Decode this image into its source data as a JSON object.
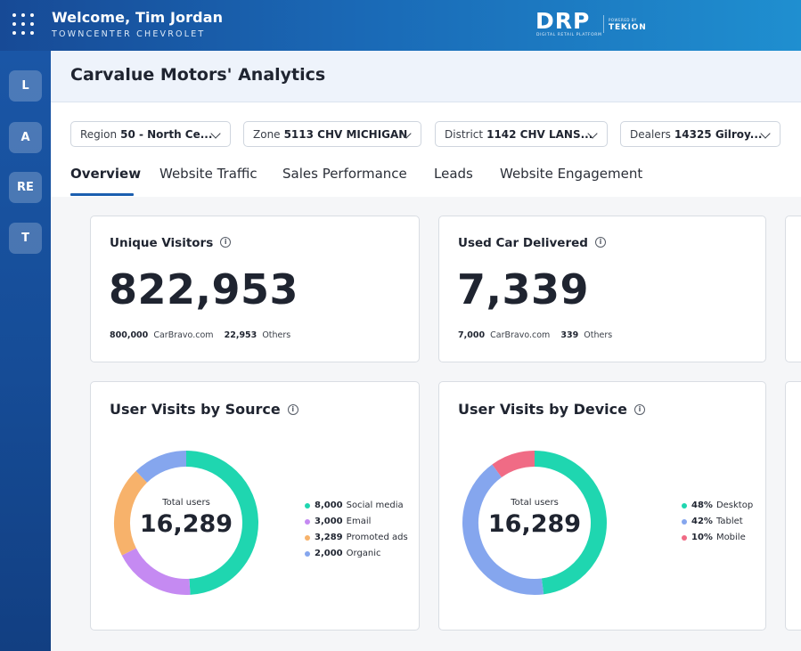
{
  "header": {
    "welcome": "Welcome, Tim Jordan",
    "dealer": "TOWNCENTER CHEVROLET",
    "logo_text": "DRP",
    "logo_sub": "DIGITAL RETAIL PLATFORM",
    "powered_by": "POWERED BY",
    "partner": "TEKION"
  },
  "sidebar": {
    "items": [
      {
        "label": "L"
      },
      {
        "label": "A"
      },
      {
        "label": "RE"
      },
      {
        "label": "T"
      }
    ]
  },
  "page": {
    "title": "Carvalue Motors' Analytics"
  },
  "filters": [
    {
      "label": "Region",
      "value": "50 - North Ce..."
    },
    {
      "label": "Zone",
      "value": "5113 CHV MICHIGAN"
    },
    {
      "label": "District",
      "value": "1142 CHV LANS..."
    },
    {
      "label": "Dealers",
      "value": "14325 Gilroy..."
    }
  ],
  "tabs": [
    {
      "label": "Overview",
      "active": true
    },
    {
      "label": "Website Traffic",
      "active": false
    },
    {
      "label": "Sales Performance",
      "active": false
    },
    {
      "label": "Leads",
      "active": false
    },
    {
      "label": "Website Engagement",
      "active": false
    }
  ],
  "kpis": [
    {
      "title": "Unique Visitors",
      "value": "822,953",
      "breakdown": [
        {
          "amount": "800,000",
          "label": "CarBravo.com"
        },
        {
          "amount": "22,953",
          "label": "Others"
        }
      ]
    },
    {
      "title": "Used Car Delivered",
      "value": "7,339",
      "breakdown": [
        {
          "amount": "7,000",
          "label": "CarBravo.com"
        },
        {
          "amount": "339",
          "label": "Others"
        }
      ]
    }
  ],
  "charts": {
    "source": {
      "title": "User Visits by Source",
      "center_label": "Total users",
      "center_value": "16,289",
      "legend": [
        {
          "amount": "8,000",
          "label": "Social media",
          "color": "#1fd6b0"
        },
        {
          "amount": "3,000",
          "label": "Email",
          "color": "#c58af2"
        },
        {
          "amount": "3,289",
          "label": "Promoted ads",
          "color": "#f7b26b"
        },
        {
          "amount": "2,000",
          "label": "Organic",
          "color": "#85a6ee"
        }
      ]
    },
    "device": {
      "title": "User Visits by Device",
      "center_label": "Total users",
      "center_value": "16,289",
      "legend": [
        {
          "amount": "48%",
          "label": "Desktop",
          "color": "#1fd6b0"
        },
        {
          "amount": "42%",
          "label": "Tablet",
          "color": "#85a6ee"
        },
        {
          "amount": "10%",
          "label": "Mobile",
          "color": "#f06b85"
        }
      ]
    }
  },
  "chart_data": [
    {
      "type": "pie",
      "title": "User Visits by Source",
      "categories": [
        "Social media",
        "Email",
        "Promoted ads",
        "Organic"
      ],
      "values": [
        8000,
        3000,
        3289,
        2000
      ],
      "colors": [
        "#1fd6b0",
        "#c58af2",
        "#f7b26b",
        "#85a6ee"
      ],
      "donut": true,
      "legend": "right"
    },
    {
      "type": "pie",
      "title": "User Visits by Device",
      "categories": [
        "Desktop",
        "Tablet",
        "Mobile"
      ],
      "values": [
        48,
        42,
        10
      ],
      "colors": [
        "#1fd6b0",
        "#85a6ee",
        "#f06b85"
      ],
      "donut": true,
      "legend": "right"
    }
  ]
}
